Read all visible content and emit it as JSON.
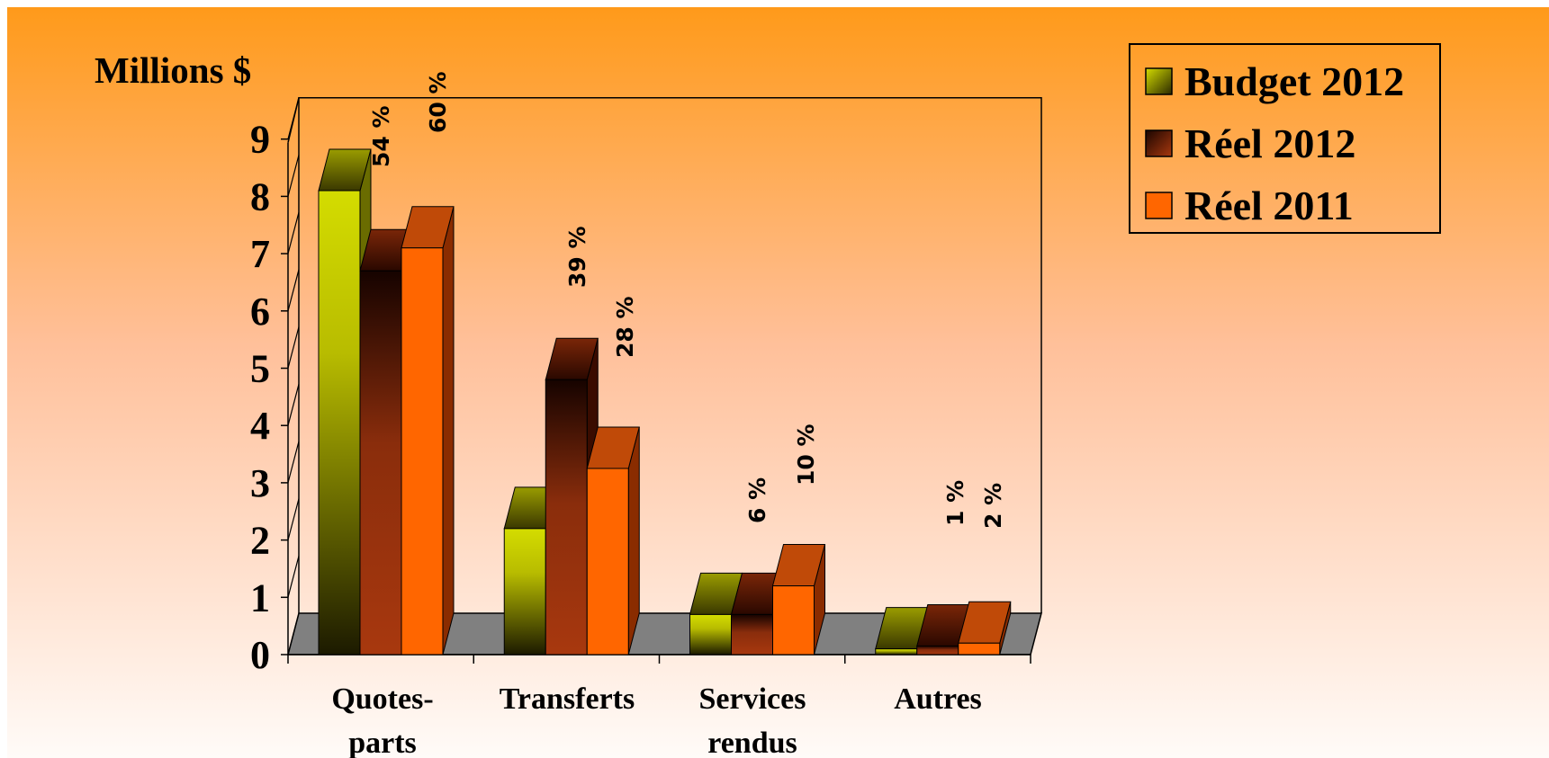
{
  "chart_data": {
    "type": "bar",
    "ylabel": "Millions $",
    "ylim": [
      0,
      9
    ],
    "yticks": [
      0,
      1,
      2,
      3,
      4,
      5,
      6,
      7,
      8,
      9
    ],
    "categories": [
      "Quotes-\nparts",
      "Transferts",
      "Services\nrendus",
      "Autres"
    ],
    "series": [
      {
        "name": "Budget 2012",
        "values": [
          8.1,
          2.2,
          0.7,
          0.1
        ],
        "data_labels": [
          "",
          "",
          "",
          ""
        ]
      },
      {
        "name": "Réel 2012",
        "values": [
          6.7,
          4.8,
          0.7,
          0.15
        ],
        "data_labels": [
          "54 %",
          "39 %",
          "6 %",
          "1 %"
        ]
      },
      {
        "name": "Réel 2011",
        "values": [
          7.1,
          3.25,
          1.2,
          0.2
        ],
        "data_labels": [
          "60 %",
          "28 %",
          "10 %",
          "2 %"
        ]
      }
    ],
    "colors": {
      "budget": "#c8d000",
      "budget_dark": "#2e2a00",
      "reel2012": "#9a3210",
      "reel2012_dark": "#1a0500",
      "reel2011": "#ff6600",
      "floor": "#808080",
      "background_top": "#ff9a1a",
      "background_bottom": "#fffaf6"
    },
    "legend_position": "top-right",
    "grid": false
  }
}
